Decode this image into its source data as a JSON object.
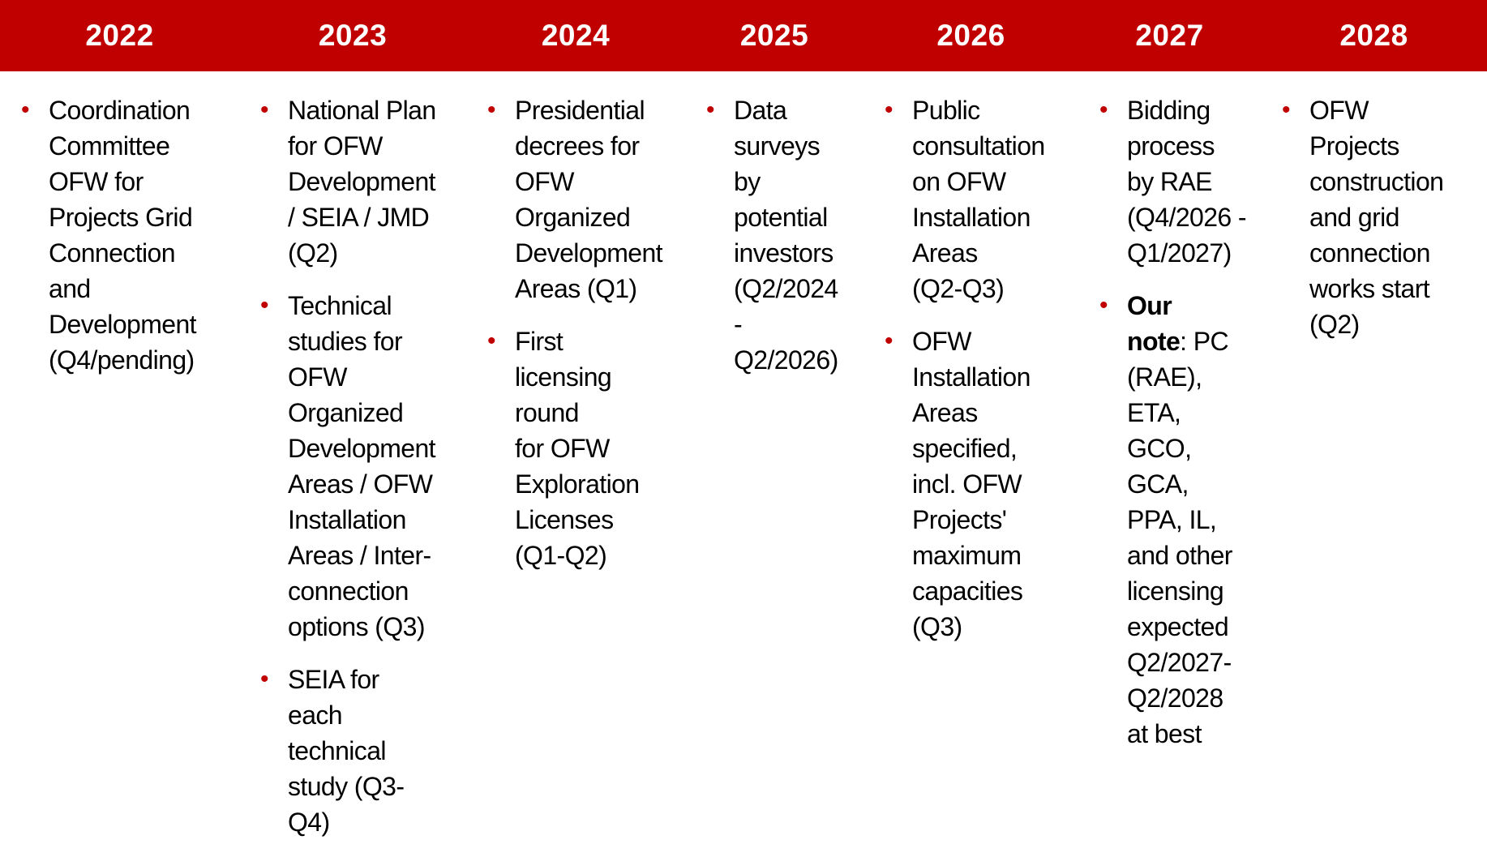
{
  "timeline": {
    "header_color": "#c00000",
    "year_text_color": "#ffffff",
    "bullet_color": "#c00000",
    "body_text_color": "#000000",
    "columns": [
      {
        "year": "2022",
        "items": [
          {
            "text": "Coordination\nCommittee\nOFW for\nProjects Grid\nConnection\nand\nDevelopment\n(Q4/pending)"
          }
        ]
      },
      {
        "year": "2023",
        "items": [
          {
            "text": "National Plan\nfor OFW\nDevelopment\n/ SEIA / JMD\n(Q2)"
          },
          {
            "text": "Technical\nstudies for\nOFW\nOrganized\nDevelopment\nAreas / OFW\nInstallation\nAreas / Inter-\nconnection\noptions (Q3)"
          },
          {
            "text": "SEIA for\neach\ntechnical\nstudy (Q3-\nQ4)"
          }
        ]
      },
      {
        "year": "2024",
        "items": [
          {
            "text": "Presidential\ndecrees for\nOFW\nOrganized\nDevelopment\nAreas (Q1)"
          },
          {
            "text": "First\nlicensing\nround\nfor OFW\nExploration\nLicenses\n(Q1-Q2)"
          }
        ]
      },
      {
        "year": "2025",
        "items": [
          {
            "text": "Data\nsurveys\nby\npotential\ninvestors\n(Q2/2024\n-\nQ2/2026)"
          }
        ]
      },
      {
        "year": "2026",
        "items": [
          {
            "text": "Public\nconsultation\non OFW\nInstallation\nAreas\n(Q2-Q3)"
          },
          {
            "text": "OFW\nInstallation\nAreas\nspecified,\nincl. OFW\nProjects'\nmaximum\ncapacities\n(Q3)"
          }
        ]
      },
      {
        "year": "2027",
        "items": [
          {
            "text": "Bidding\nprocess\nby RAE\n(Q4/2026 -\nQ1/2027)"
          },
          {
            "bold_prefix": "Our\nnote",
            "text": ": PC\n(RAE),\nETA,\nGCO,\nGCA,\nPPA, IL,\nand other\nlicensing\nexpected\nQ2/2027-\nQ2/2028\nat best"
          }
        ]
      },
      {
        "year": "2028",
        "items": [
          {
            "text": "OFW\nProjects\nconstruction\nand grid\nconnection\nworks start\n(Q2)"
          }
        ]
      }
    ]
  }
}
